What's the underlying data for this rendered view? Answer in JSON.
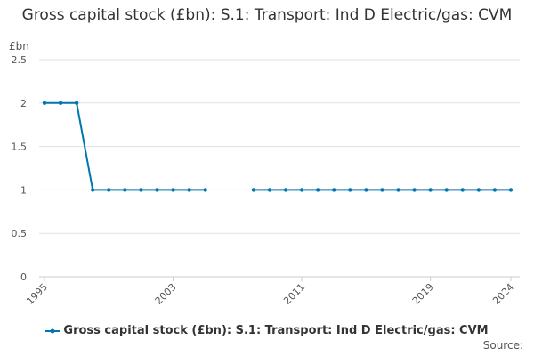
{
  "chart_data": {
    "type": "line",
    "title": "Gross capital stock (£bn): S.1: Transport: Ind D Electric/gas: CVM",
    "ylabel": "£bn",
    "xlabel": "",
    "ylim": [
      0,
      2.5
    ],
    "xlim": [
      1995,
      2024
    ],
    "y_ticks": [
      "0",
      "0.5",
      "1",
      "1.5",
      "2",
      "2.5"
    ],
    "x_ticks": [
      "1995",
      "2003",
      "2011",
      "2019",
      "2024"
    ],
    "grid": true,
    "legend_position": "bottom",
    "series_color": "#0075b0",
    "series": [
      {
        "name": "Gross capital stock (£bn): S.1: Transport: Ind D Electric/gas: CVM",
        "x": [
          1995,
          1996,
          1997,
          1998,
          1999,
          2000,
          2001,
          2002,
          2003,
          2004,
          2005,
          2006,
          2007,
          2008,
          2009,
          2010,
          2011,
          2012,
          2013,
          2014,
          2015,
          2016,
          2017,
          2018,
          2019,
          2020,
          2021,
          2022,
          2023,
          2024
        ],
        "values": [
          2,
          2,
          2,
          1,
          1,
          1,
          1,
          1,
          1,
          1,
          1,
          null,
          null,
          1,
          1,
          1,
          1,
          1,
          1,
          1,
          1,
          1,
          1,
          1,
          1,
          1,
          1,
          1,
          1,
          1
        ]
      }
    ],
    "source_label": "Source:"
  }
}
